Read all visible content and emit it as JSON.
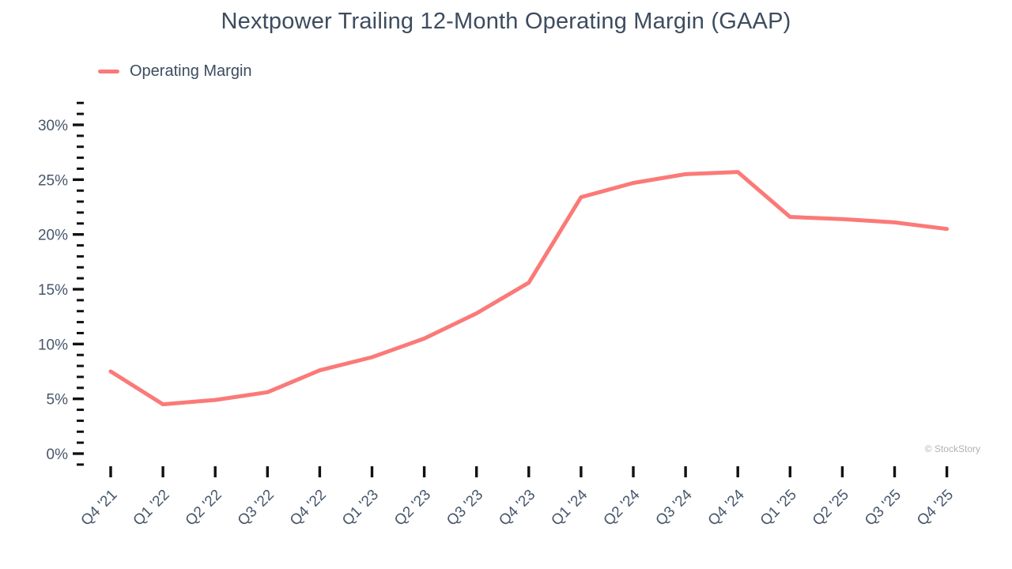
{
  "title": "Nextpower Trailing 12-Month Operating Margin (GAAP)",
  "legend": {
    "items": [
      {
        "label": "Operating Margin",
        "color": "#fa7a78"
      }
    ]
  },
  "watermark": "© StockStory",
  "colors": {
    "line": "#fa7a78",
    "title_text": "#3d4c5e",
    "axis_text": "#47566b",
    "tick_mark": "#111111",
    "watermark_text": "#b1b1b1"
  },
  "chart_data": {
    "type": "line",
    "title": "Nextpower Trailing 12-Month Operating Margin (GAAP)",
    "categories": [
      "Q4 '21",
      "Q1 '22",
      "Q2 '22",
      "Q3 '22",
      "Q4 '22",
      "Q1 '23",
      "Q2 '23",
      "Q3 '23",
      "Q4 '23",
      "Q1 '24",
      "Q2 '24",
      "Q3 '24",
      "Q4 '24",
      "Q1 '25",
      "Q2 '25",
      "Q3 '25",
      "Q4 '25"
    ],
    "series": [
      {
        "name": "Operating Margin",
        "values": [
          7.5,
          4.5,
          4.9,
          5.6,
          7.6,
          8.8,
          10.5,
          12.8,
          15.6,
          23.4,
          24.7,
          25.5,
          25.7,
          21.6,
          21.4,
          21.1,
          20.5
        ]
      }
    ],
    "xlabel": "",
    "ylabel": "",
    "y_unit": "%",
    "ylim": [
      -1,
      32
    ],
    "y_major_ticks": [
      0,
      5,
      10,
      15,
      20,
      25,
      30
    ],
    "y_minor_tick_step": 1,
    "grid": false,
    "legend_position": "top-left"
  }
}
